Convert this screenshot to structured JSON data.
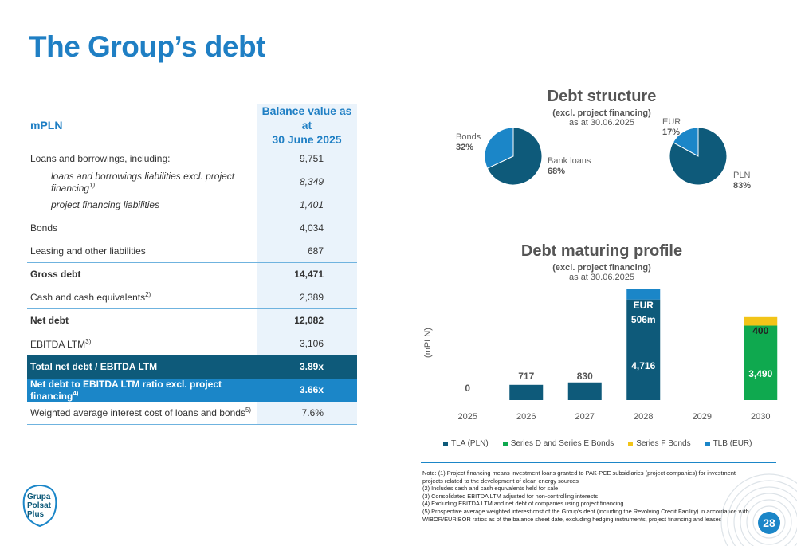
{
  "title": "The Group’s debt",
  "table": {
    "header": {
      "col1": "mPLN",
      "col2_line1": "Balance value as at",
      "col2_line2": "30 June 2025"
    },
    "rows": [
      {
        "label": "Loans and borrowings, including:",
        "value": "9,751"
      },
      {
        "label": "loans and borrowings liabilities excl. project financing",
        "sup": "1)",
        "value": "8,349"
      },
      {
        "label": "project financing liabilities",
        "value": "1,401"
      },
      {
        "label": "Bonds",
        "value": "4,034"
      },
      {
        "label": "Leasing and other liabilities",
        "value": "687"
      },
      {
        "label": "Gross debt",
        "value": "14,471"
      },
      {
        "label": "Cash and cash equivalents",
        "sup": "2)",
        "value": "2,389"
      },
      {
        "label": "Net debt",
        "value": "12,082"
      },
      {
        "label": "EBITDA LTM",
        "sup": "3)",
        "value": "3,106"
      },
      {
        "label": "Total net debt / EBITDA LTM",
        "value": "3.89x"
      },
      {
        "label": "Net debt to EBITDA LTM ratio excl. project financing",
        "sup": "4)",
        "value": "3.66x"
      },
      {
        "label": "Weighted average interest cost of loans and bonds",
        "sup": "5)",
        "value": "7.6%"
      }
    ]
  },
  "debt_structure": {
    "title": "Debt structure",
    "subtitle_bold": "(excl. project financing)",
    "subtitle": "as at 30.06.2025",
    "pie1": [
      {
        "name": "Bonds",
        "pct": "32%",
        "value": 32,
        "color": "#1b86c8"
      },
      {
        "name": "Bank loans",
        "pct": "68%",
        "value": 68,
        "color": "#0e5a7a"
      }
    ],
    "pie2": [
      {
        "name": "EUR",
        "pct": "17%",
        "value": 17,
        "color": "#1b86c8"
      },
      {
        "name": "PLN",
        "pct": "83%",
        "value": 83,
        "color": "#0e5a7a"
      }
    ]
  },
  "maturing": {
    "title": "Debt maturing profile",
    "subtitle_bold": "(excl. project financing)",
    "subtitle": "as at 30.06.2025"
  },
  "chart_data": {
    "type": "bar",
    "stacked": true,
    "categories": [
      "2025",
      "2026",
      "2027",
      "2028",
      "2029",
      "2030"
    ],
    "ylabel": "(mPLN)",
    "series": [
      {
        "name": "TLA (PLN)",
        "values": [
          0,
          717,
          830,
          4716,
          0,
          0
        ],
        "color": "#0e5a7a"
      },
      {
        "name": "Series D and Series E Bonds",
        "values": [
          0,
          0,
          0,
          0,
          0,
          3490
        ],
        "color": "#0fa94f"
      },
      {
        "name": "Series F Bonds",
        "values": [
          0,
          0,
          0,
          0,
          0,
          400
        ],
        "color": "#f2c418"
      },
      {
        "name": "TLB (EUR)",
        "values": [
          0,
          0,
          0,
          506,
          0,
          0
        ],
        "color": "#1b86c8"
      }
    ],
    "labels": {
      "2025": "0",
      "2026": "717",
      "2027": "830",
      "2028_tla": "4,716",
      "2028_eur_1": "EUR",
      "2028_eur_2": "506m",
      "2030_d": "3,490",
      "2030_f": "400"
    },
    "ylim": [
      0,
      5600
    ]
  },
  "notes": [
    "Note: (1) Project financing means investment loans granted to PAK-PCE subsidiaries (project companies) for investment projects related to the development of clean energy sources",
    "(2) Includes cash and cash equivalents held for sale",
    "(3) Consolidated EBITDA LTM adjusted for non-controlling interests",
    "(4) Excluding EBITDA LTM and net debt of companies using project financing",
    "(5) Prospective average weighted interest cost of the Group's debt (including the Revolving Credit Facility) in accordance with WIBOR/EURIBOR ratios as of the balance sheet date, excluding hedging instruments, project financing and leases"
  ],
  "logo": {
    "line1": "Grupa",
    "line2": "Polsat",
    "line3": "Plus"
  },
  "page_number": "28"
}
